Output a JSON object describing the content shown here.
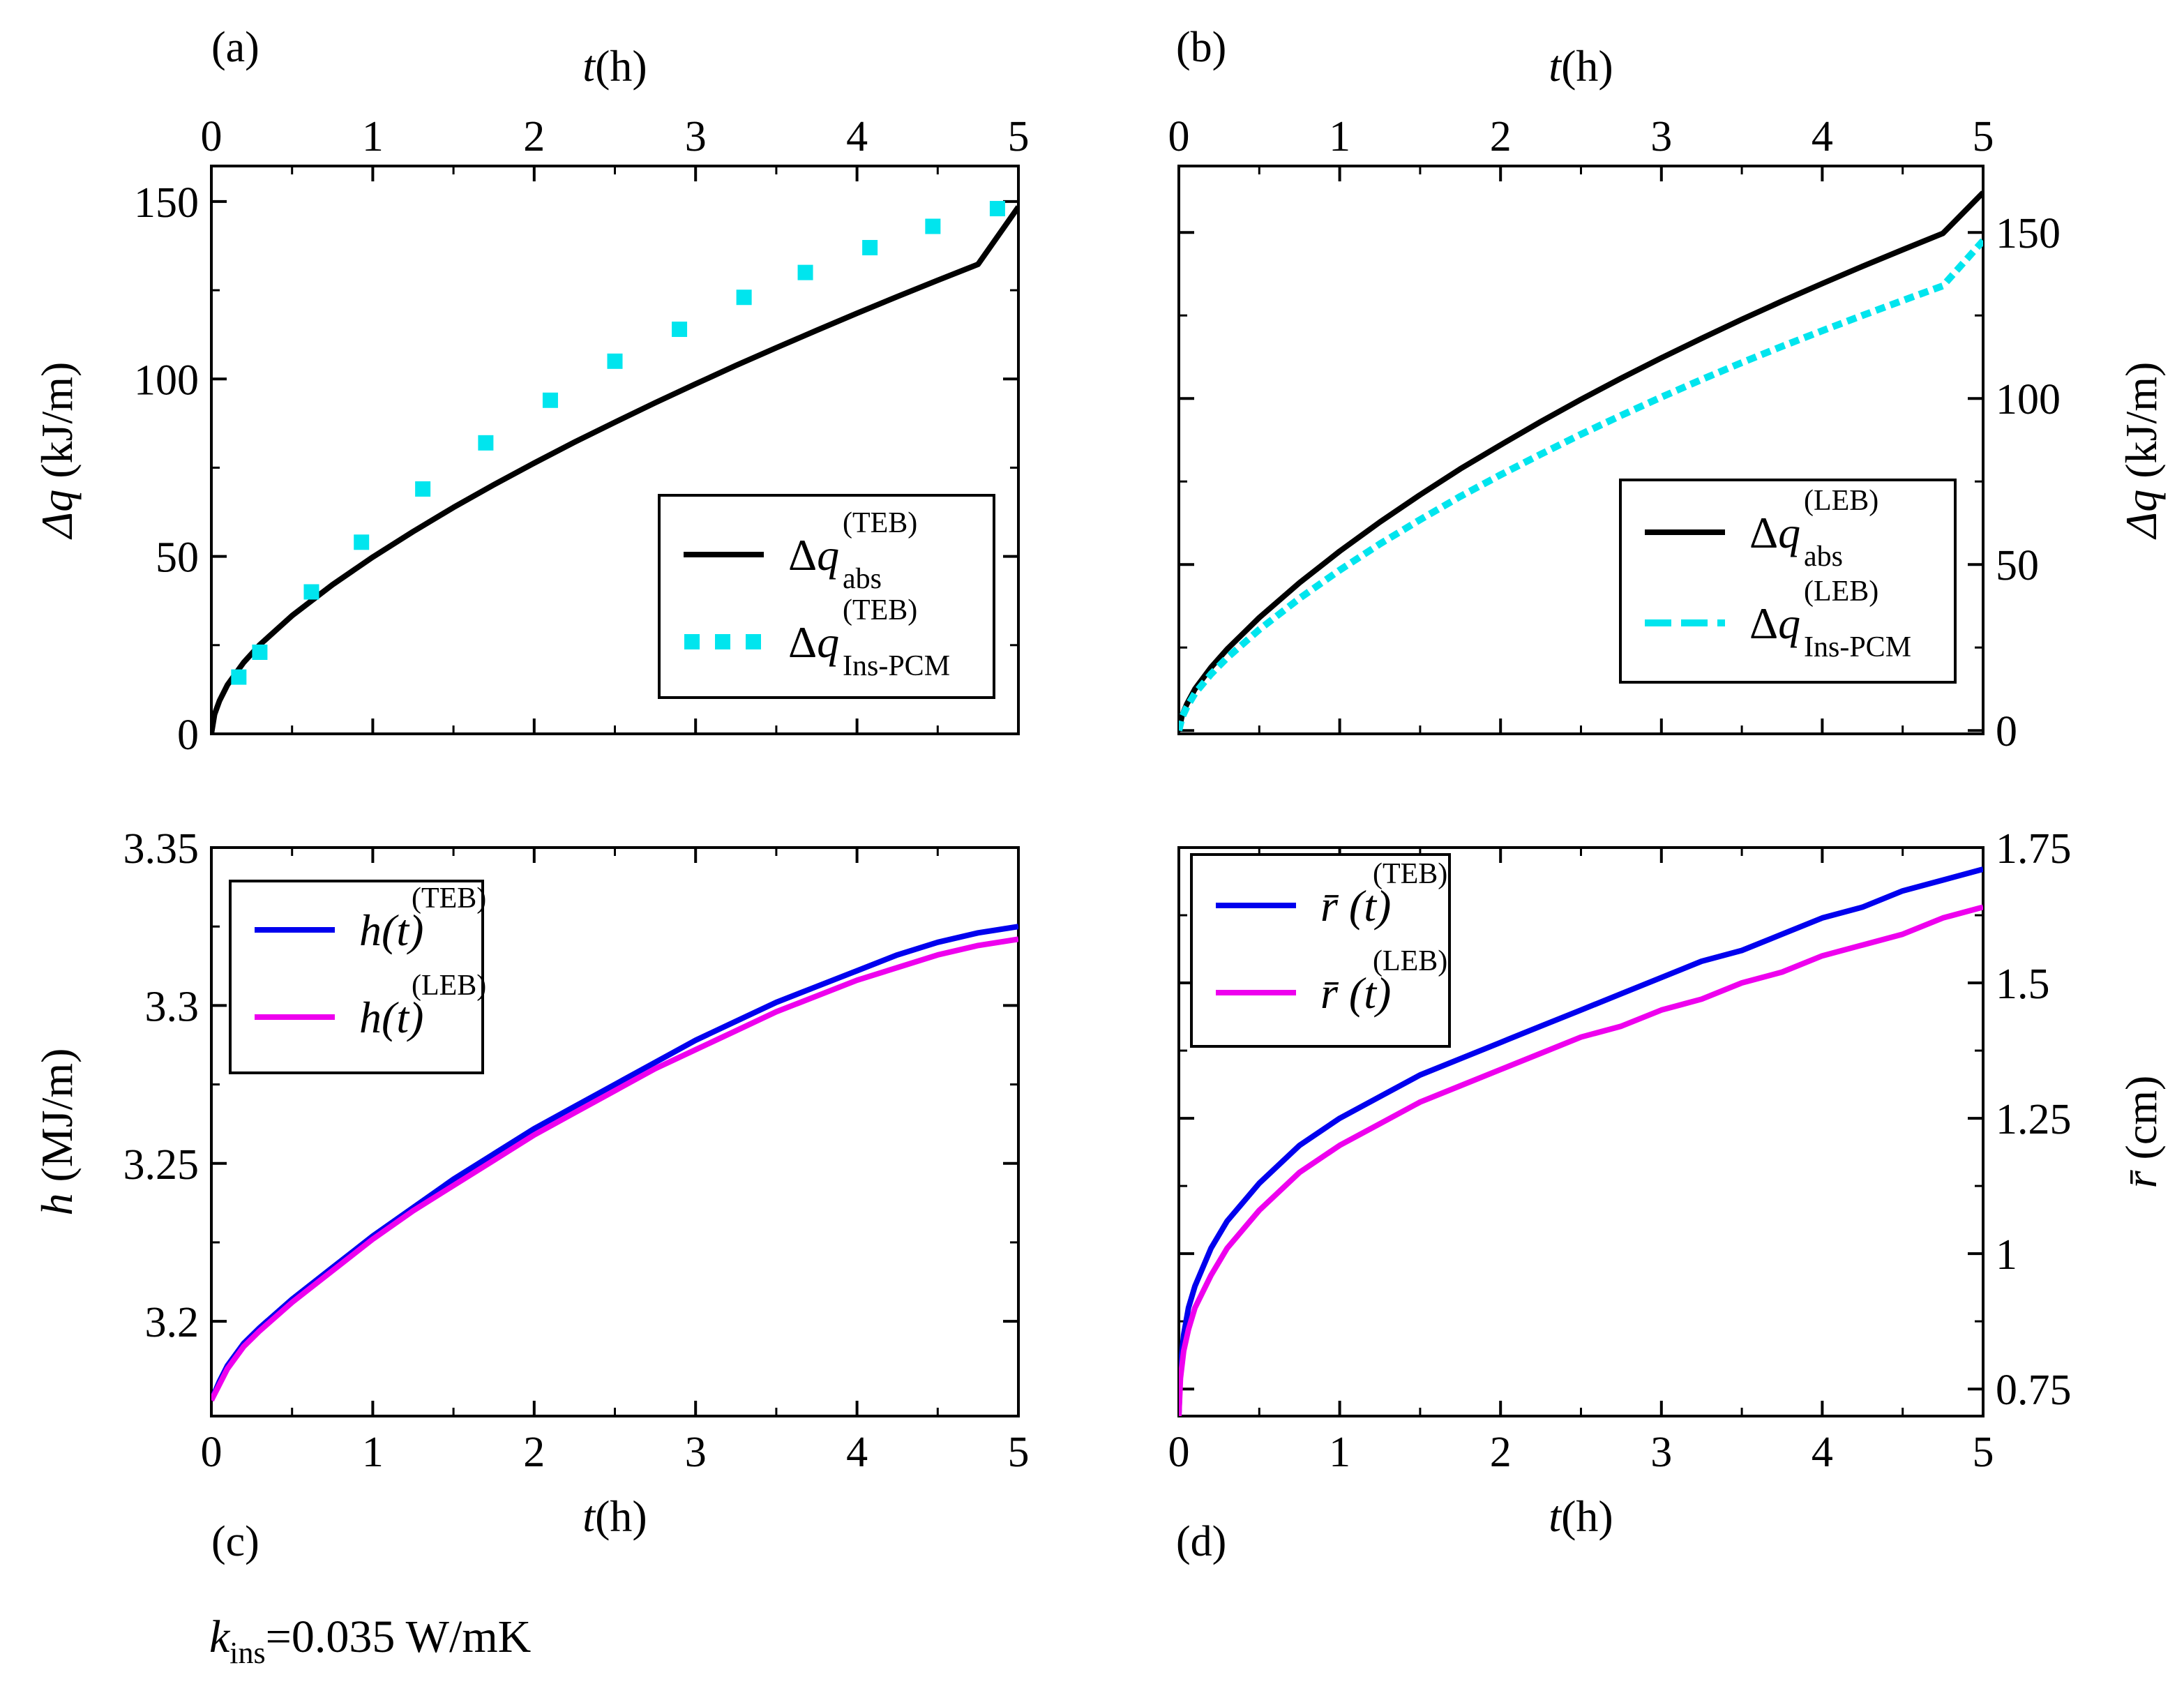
{
  "figure": {
    "footnote_symbol": "k",
    "footnote_sub": "ins",
    "footnote_rest": "=0.035 W/mK"
  },
  "chart_data": [
    {
      "id": "a",
      "type": "line",
      "panel_label": "(a)",
      "xlabel_italic": "t",
      "xlabel_unit": "(h)",
      "xlabel_position": "top",
      "ylabel_symbol": "Δq",
      "ylabel_unit": "(kJ/m)",
      "ylabel_position": "left",
      "xlim": [
        0,
        5
      ],
      "ylim": [
        0,
        160
      ],
      "xticks": [
        0,
        1,
        2,
        3,
        4,
        5
      ],
      "xtick_labels": [
        "0",
        "1",
        "2",
        "3",
        "4",
        "5"
      ],
      "yticks": [
        0,
        50,
        100,
        150
      ],
      "ytick_labels": [
        "0",
        "50",
        "100",
        "150"
      ],
      "legend": {
        "position": "right-center"
      },
      "series": [
        {
          "name": "Δq_abs^(TEB)",
          "legend_main": "Δq",
          "legend_sub": "abs",
          "legend_sup": "(TEB)",
          "color": "#000000",
          "style": "solid",
          "x": [
            0,
            0.02,
            0.05,
            0.1,
            0.2,
            0.3,
            0.5,
            0.75,
            1.0,
            1.25,
            1.5,
            1.75,
            2.0,
            2.25,
            2.5,
            2.75,
            3.0,
            3.25,
            3.5,
            3.75,
            4.0,
            4.25,
            4.5,
            4.75,
            5.0
          ],
          "values": [
            0,
            5.5,
            9.3,
            13.8,
            20.1,
            25.1,
            33.3,
            42.0,
            49.8,
            57.0,
            63.8,
            70.2,
            76.3,
            82.2,
            87.8,
            93.3,
            98.6,
            103.8,
            108.8,
            113.7,
            118.5,
            123.2,
            127.8,
            132.3,
            148.5
          ]
        },
        {
          "name": "Δq_Ins-PCM^(TEB)",
          "legend_main": "Δq",
          "legend_sub": "Ins-PCM",
          "legend_sup": "(TEB)",
          "color": "#00e5ee",
          "style": "square-markers",
          "x": [
            0.17,
            0.3,
            0.62,
            0.93,
            1.31,
            1.7,
            2.1,
            2.5,
            2.9,
            3.3,
            3.68,
            4.08,
            4.47,
            4.87
          ],
          "values": [
            16,
            23,
            40,
            54,
            69,
            82,
            94,
            105,
            114,
            123,
            130,
            137,
            143,
            148
          ]
        }
      ]
    },
    {
      "id": "b",
      "type": "line",
      "panel_label": "(b)",
      "xlabel_italic": "t",
      "xlabel_unit": "(h)",
      "xlabel_position": "top",
      "ylabel_symbol": "Δq",
      "ylabel_unit": "(kJ/m)",
      "ylabel_position": "right",
      "xlim": [
        0,
        5
      ],
      "ylim": [
        -1,
        170
      ],
      "xticks": [
        0,
        1,
        2,
        3,
        4,
        5
      ],
      "xtick_labels": [
        "0",
        "1",
        "2",
        "3",
        "4",
        "5"
      ],
      "yticks": [
        0,
        50,
        100,
        150
      ],
      "ytick_labels": [
        "0",
        "50",
        "100",
        "150"
      ],
      "legend": {
        "position": "right-center"
      },
      "series": [
        {
          "name": "Δq_abs^(LEB)",
          "legend_main": "Δq",
          "legend_sub": "abs",
          "legend_sup": "(LEB)",
          "color": "#000000",
          "style": "solid",
          "x": [
            0,
            0.02,
            0.05,
            0.1,
            0.2,
            0.3,
            0.5,
            0.75,
            1.0,
            1.25,
            1.5,
            1.75,
            2.0,
            2.25,
            2.5,
            2.75,
            3.0,
            3.25,
            3.5,
            3.75,
            4.0,
            4.25,
            4.5,
            4.75,
            5.0
          ],
          "values": [
            0,
            4.5,
            8.0,
            12.5,
            19.0,
            24.5,
            34.0,
            44.5,
            54.0,
            62.8,
            71.0,
            78.8,
            86.0,
            93.0,
            99.7,
            106.1,
            112.2,
            118.1,
            123.8,
            129.3,
            134.6,
            139.8,
            144.8,
            149.7,
            162.0
          ]
        },
        {
          "name": "Δq_Ins-PCM^(LEB)",
          "legend_main": "Δq",
          "legend_sub": "Ins-PCM",
          "legend_sup": "(LEB)",
          "color": "#00e5ee",
          "style": "dashed",
          "x": [
            0,
            0.02,
            0.05,
            0.1,
            0.2,
            0.3,
            0.5,
            0.75,
            1.0,
            1.25,
            1.5,
            1.75,
            2.0,
            2.25,
            2.5,
            2.75,
            3.0,
            3.25,
            3.5,
            3.75,
            4.0,
            4.25,
            4.5,
            4.75,
            5.0
          ],
          "values": [
            0,
            4.0,
            7.1,
            11.2,
            17.0,
            21.9,
            30.4,
            39.8,
            48.3,
            56.2,
            63.5,
            70.5,
            77.0,
            83.2,
            89.2,
            94.9,
            100.4,
            105.7,
            110.8,
            115.7,
            120.4,
            125.0,
            129.5,
            133.9,
            147.5
          ]
        }
      ]
    },
    {
      "id": "c",
      "type": "line",
      "panel_label": "(c)",
      "xlabel_italic": "t",
      "xlabel_unit": "(h)",
      "xlabel_position": "bottom",
      "ylabel_symbol": "h",
      "ylabel_unit": "(MJ/m)",
      "ylabel_position": "left",
      "xlim": [
        0,
        5
      ],
      "ylim": [
        3.17,
        3.35
      ],
      "xticks": [
        0,
        1,
        2,
        3,
        4,
        5
      ],
      "xtick_labels": [
        "0",
        "1",
        "2",
        "3",
        "4",
        "5"
      ],
      "yticks": [
        3.2,
        3.25,
        3.3,
        3.35
      ],
      "ytick_labels": [
        "3.2",
        "3.25",
        "3.3",
        "3.35"
      ],
      "legend": {
        "position": "top-left"
      },
      "series": [
        {
          "name": "h(t)^(TEB)",
          "legend_main": "h(t)",
          "legend_sup": "(TEB)",
          "color": "#0000ee",
          "style": "solid",
          "x": [
            0,
            0.05,
            0.1,
            0.2,
            0.3,
            0.5,
            0.75,
            1.0,
            1.25,
            1.5,
            1.75,
            2.0,
            2.25,
            2.5,
            2.75,
            3.0,
            3.25,
            3.5,
            3.75,
            4.0,
            4.25,
            4.5,
            4.75,
            5.0
          ],
          "values": [
            3.175,
            3.181,
            3.186,
            3.193,
            3.198,
            3.207,
            3.217,
            3.227,
            3.236,
            3.245,
            3.253,
            3.261,
            3.268,
            3.275,
            3.282,
            3.289,
            3.295,
            3.301,
            3.306,
            3.311,
            3.316,
            3.32,
            3.323,
            3.325
          ]
        },
        {
          "name": "h(t)^(LEB)",
          "legend_main": "h(t)",
          "legend_sup": "(LEB)",
          "color": "#ee00ee",
          "style": "solid",
          "x": [
            0,
            0.05,
            0.1,
            0.2,
            0.3,
            0.5,
            0.75,
            1.0,
            1.25,
            1.5,
            1.75,
            2.0,
            2.25,
            2.5,
            2.75,
            3.0,
            3.25,
            3.5,
            3.75,
            4.0,
            4.25,
            4.5,
            4.75,
            5.0
          ],
          "values": [
            3.175,
            3.18,
            3.185,
            3.192,
            3.197,
            3.206,
            3.216,
            3.226,
            3.235,
            3.243,
            3.251,
            3.259,
            3.266,
            3.273,
            3.28,
            3.286,
            3.292,
            3.298,
            3.303,
            3.308,
            3.312,
            3.316,
            3.319,
            3.321
          ]
        }
      ]
    },
    {
      "id": "d",
      "type": "line",
      "panel_label": "(d)",
      "xlabel_italic": "t",
      "xlabel_unit": "(h)",
      "xlabel_position": "bottom",
      "ylabel_symbol": "r̄",
      "ylabel_unit": "(cm)",
      "ylabel_position": "right",
      "xlim": [
        0,
        5
      ],
      "ylim": [
        0.7,
        1.75
      ],
      "xticks": [
        0,
        1,
        2,
        3,
        4,
        5
      ],
      "xtick_labels": [
        "0",
        "1",
        "2",
        "3",
        "4",
        "5"
      ],
      "yticks": [
        0.75,
        1,
        1.25,
        1.5,
        1.75
      ],
      "ytick_labels": [
        "0.75",
        "1",
        "1.25",
        "1.5",
        "1.75"
      ],
      "legend": {
        "position": "top-left"
      },
      "series": [
        {
          "name": "r̄(t)^(TEB)",
          "legend_main": "r̄ (t)",
          "legend_sup": "(TEB)",
          "color": "#0000ee",
          "style": "solid",
          "x": [
            0,
            0.01,
            0.03,
            0.06,
            0.1,
            0.2,
            0.3,
            0.5,
            0.75,
            1.0,
            1.25,
            1.5,
            1.75,
            2.0,
            2.25,
            2.5,
            2.75,
            3.0,
            3.25,
            3.5,
            3.75,
            4.0,
            4.25,
            4.5,
            4.75,
            5.0
          ],
          "values": [
            0.7,
            0.79,
            0.85,
            0.9,
            0.94,
            1.01,
            1.06,
            1.13,
            1.2,
            1.25,
            1.29,
            1.33,
            1.36,
            1.39,
            1.42,
            1.45,
            1.48,
            1.51,
            1.54,
            1.56,
            1.59,
            1.62,
            1.64,
            1.67,
            1.69,
            1.71
          ]
        },
        {
          "name": "r̄(t)^(LEB)",
          "legend_main": "r̄ (t)",
          "legend_sup": "(LEB)",
          "color": "#ee00ee",
          "style": "solid",
          "x": [
            0,
            0.01,
            0.03,
            0.06,
            0.1,
            0.2,
            0.3,
            0.5,
            0.75,
            1.0,
            1.25,
            1.5,
            1.75,
            2.0,
            2.25,
            2.5,
            2.75,
            3.0,
            3.25,
            3.5,
            3.75,
            4.0,
            4.25,
            4.5,
            4.75,
            5.0
          ],
          "values": [
            0.7,
            0.77,
            0.82,
            0.86,
            0.9,
            0.96,
            1.01,
            1.08,
            1.15,
            1.2,
            1.24,
            1.28,
            1.31,
            1.34,
            1.37,
            1.4,
            1.42,
            1.45,
            1.47,
            1.5,
            1.52,
            1.55,
            1.57,
            1.59,
            1.62,
            1.64
          ]
        }
      ]
    }
  ]
}
